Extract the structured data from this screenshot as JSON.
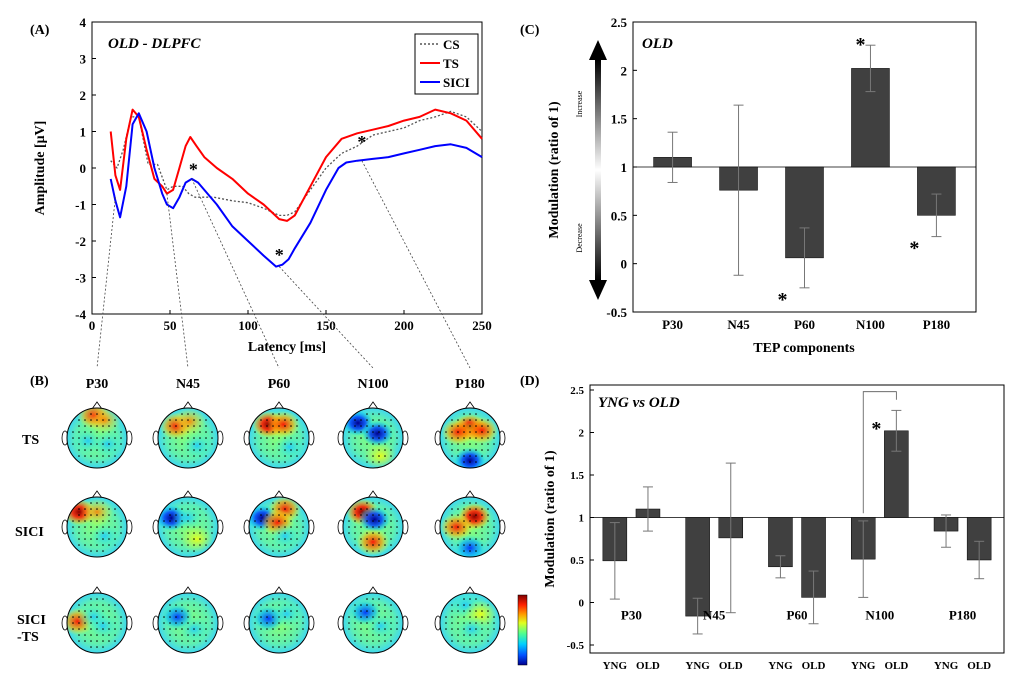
{
  "panel_labels": {
    "a": "(A)",
    "b": "(B)",
    "c": "(C)",
    "d": "(D)"
  },
  "colors": {
    "cs": "#555555",
    "ts": "#ff0000",
    "sici": "#0000ff",
    "bar": "#404040"
  },
  "chart_data": [
    {
      "id": "A",
      "type": "line",
      "title": "OLD - DLPFC",
      "xlabel": "Latency [ms]",
      "ylabel": "Amplitude [μV]",
      "xlim": [
        0,
        250
      ],
      "ylim": [
        -4,
        4
      ],
      "xticks": [
        0,
        50,
        100,
        150,
        200,
        250
      ],
      "yticks": [
        -4,
        -3,
        -2,
        -1,
        0,
        1,
        2,
        3,
        4
      ],
      "series": [
        {
          "name": "CS",
          "style": "dotted",
          "color": "#555555",
          "x": [
            12,
            16,
            20,
            25,
            30,
            36,
            42,
            48,
            52,
            58,
            62,
            66,
            70,
            78,
            90,
            100,
            110,
            120,
            125,
            130,
            140,
            150,
            160,
            170,
            180,
            190,
            200,
            210,
            220,
            230,
            240,
            250
          ],
          "y": [
            0.2,
            0.0,
            0.5,
            1.4,
            1.4,
            0.1,
            0.1,
            -0.6,
            -0.5,
            -0.5,
            -0.7,
            -0.8,
            -0.8,
            -0.8,
            -0.9,
            -0.95,
            -1.1,
            -1.3,
            -1.3,
            -1.2,
            -0.6,
            0.0,
            0.4,
            0.6,
            0.9,
            1.0,
            1.1,
            1.3,
            1.4,
            1.55,
            1.4,
            1.0
          ]
        },
        {
          "name": "TS",
          "style": "solid",
          "color": "#ff0000",
          "x": [
            12,
            15,
            18,
            22,
            26,
            30,
            35,
            40,
            45,
            48,
            52,
            56,
            60,
            63,
            67,
            72,
            80,
            90,
            100,
            110,
            120,
            125,
            130,
            140,
            150,
            160,
            170,
            180,
            190,
            200,
            210,
            220,
            230,
            240,
            250
          ],
          "y": [
            1.0,
            -0.2,
            -0.6,
            0.8,
            1.6,
            1.4,
            0.5,
            -0.3,
            -0.5,
            -0.7,
            -0.6,
            0.0,
            0.6,
            0.85,
            0.6,
            0.3,
            0.0,
            -0.3,
            -0.7,
            -1.0,
            -1.4,
            -1.45,
            -1.3,
            -0.5,
            0.3,
            0.8,
            0.95,
            1.05,
            1.15,
            1.3,
            1.4,
            1.6,
            1.5,
            1.3,
            0.8
          ]
        },
        {
          "name": "SICI",
          "style": "solid",
          "color": "#0000ff",
          "x": [
            12,
            15,
            18,
            22,
            26,
            30,
            35,
            40,
            45,
            48,
            52,
            56,
            60,
            64,
            68,
            72,
            80,
            90,
            100,
            110,
            118,
            122,
            126,
            130,
            140,
            150,
            158,
            163,
            170,
            180,
            190,
            200,
            210,
            220,
            230,
            240,
            250
          ],
          "y": [
            -0.3,
            -0.9,
            -1.35,
            -0.5,
            1.2,
            1.5,
            1.0,
            0.0,
            -0.7,
            -1.0,
            -1.1,
            -0.8,
            -0.4,
            -0.3,
            -0.4,
            -0.6,
            -1.0,
            -1.6,
            -2.0,
            -2.4,
            -2.7,
            -2.65,
            -2.5,
            -2.2,
            -1.5,
            -0.6,
            0.0,
            0.15,
            0.2,
            0.25,
            0.3,
            0.4,
            0.5,
            0.6,
            0.65,
            0.55,
            0.3
          ]
        }
      ],
      "significance": [
        {
          "x": 65,
          "y": -0.2,
          "label": "*"
        },
        {
          "x": 120,
          "y": -2.55,
          "label": "*"
        },
        {
          "x": 173,
          "y": 0.55,
          "label": "*"
        }
      ],
      "legend": "top-right"
    },
    {
      "id": "B",
      "type": "heatmap",
      "columns": [
        "P30",
        "N45",
        "P60",
        "N100",
        "P180"
      ],
      "rows": [
        "TS",
        "SICI",
        "SICI\n-TS"
      ],
      "rows_lines": [
        [
          "TS"
        ],
        [
          "SICI"
        ],
        [
          "SICI",
          "-TS"
        ]
      ],
      "colorbar": {
        "colors": [
          "#00008f",
          "#0050ff",
          "#00d0ff",
          "#50ff90",
          "#e0ff20",
          "#ffa000",
          "#ff2000",
          "#800000"
        ]
      },
      "maps": [
        [
          [
            {
              "x": -0.1,
              "y": -0.75,
              "c": "red"
            },
            {
              "x": 0.25,
              "y": -0.6,
              "c": "orange"
            },
            {
              "x": -0.3,
              "y": 0.1,
              "c": "cyan"
            },
            {
              "x": 0.35,
              "y": 0.2,
              "c": "cyan"
            }
          ],
          [
            {
              "x": -0.4,
              "y": -0.4,
              "c": "red"
            },
            {
              "x": 0.05,
              "y": -0.55,
              "c": "orange"
            },
            {
              "x": 0.3,
              "y": 0.25,
              "c": "cyan"
            }
          ],
          [
            {
              "x": -0.35,
              "y": -0.45,
              "c": "darkred"
            },
            {
              "x": 0.15,
              "y": -0.45,
              "c": "red"
            },
            {
              "x": 0.35,
              "y": 0.3,
              "c": "cyan"
            }
          ],
          [
            {
              "x": -0.5,
              "y": -0.5,
              "c": "darkblue"
            },
            {
              "x": 0.15,
              "y": -0.15,
              "c": "darkblue"
            },
            {
              "x": 0.25,
              "y": 0.6,
              "c": "yellow"
            }
          ],
          [
            {
              "x": 0.0,
              "y": -0.35,
              "c": "darkred"
            },
            {
              "x": -0.4,
              "y": -0.2,
              "c": "red"
            },
            {
              "x": 0.4,
              "y": -0.25,
              "c": "red"
            },
            {
              "x": 0.0,
              "y": 0.75,
              "c": "darkblue"
            }
          ]
        ],
        [
          [
            {
              "x": -0.6,
              "y": -0.5,
              "c": "darkred"
            },
            {
              "x": 0.0,
              "y": -0.5,
              "c": "orange"
            },
            {
              "x": 0.25,
              "y": 0.3,
              "c": "cyan"
            }
          ],
          [
            {
              "x": -0.55,
              "y": -0.3,
              "c": "darkblue"
            },
            {
              "x": 0.0,
              "y": -0.3,
              "c": "cyan"
            },
            {
              "x": 0.3,
              "y": 0.4,
              "c": "yellow"
            }
          ],
          [
            {
              "x": -0.55,
              "y": -0.3,
              "c": "darkblue"
            },
            {
              "x": 0.2,
              "y": -0.6,
              "c": "red"
            },
            {
              "x": -0.05,
              "y": -0.15,
              "c": "red"
            },
            {
              "x": 0.2,
              "y": 0.3,
              "c": "cyan"
            }
          ],
          [
            {
              "x": -0.35,
              "y": -0.5,
              "c": "darkred"
            },
            {
              "x": 0.05,
              "y": -0.25,
              "c": "darkblue"
            },
            {
              "x": 0.0,
              "y": 0.5,
              "c": "red"
            }
          ],
          [
            {
              "x": 0.15,
              "y": -0.35,
              "c": "darkred"
            },
            {
              "x": -0.45,
              "y": 0.0,
              "c": "red"
            },
            {
              "x": 0.0,
              "y": 0.7,
              "c": "blue"
            }
          ]
        ],
        [
          [
            {
              "x": -0.65,
              "y": -0.05,
              "c": "red"
            },
            {
              "x": -0.1,
              "y": -0.2,
              "c": "cyan"
            },
            {
              "x": 0.2,
              "y": 0.1,
              "c": "cyan"
            }
          ],
          [
            {
              "x": -0.35,
              "y": -0.2,
              "c": "blue"
            },
            {
              "x": 0.2,
              "y": 0.2,
              "c": "cyan"
            }
          ],
          [
            {
              "x": -0.35,
              "y": -0.15,
              "c": "blue"
            },
            {
              "x": 0.25,
              "y": -0.3,
              "c": "cyan"
            }
          ],
          [
            {
              "x": -0.25,
              "y": -0.35,
              "c": "blue"
            },
            {
              "x": 0.25,
              "y": 0.1,
              "c": "cyan"
            }
          ],
          [
            {
              "x": -0.15,
              "y": -0.6,
              "c": "cyan"
            },
            {
              "x": 0.35,
              "y": -0.3,
              "c": "yellow"
            },
            {
              "x": 0.05,
              "y": 0.2,
              "c": "cyan"
            }
          ]
        ]
      ]
    },
    {
      "id": "C",
      "type": "bar",
      "title": "OLD",
      "xlabel": "TEP components",
      "ylabel": "Modulation (ratio of 1)",
      "categories": [
        "P30",
        "N45",
        "P60",
        "N100",
        "P180"
      ],
      "values": [
        1.1,
        0.76,
        0.06,
        2.02,
        0.5
      ],
      "errors": [
        0.26,
        0.88,
        0.31,
        0.24,
        0.22
      ],
      "significant": [
        false,
        false,
        true,
        true,
        true
      ],
      "ylim": [
        -0.5,
        2.5
      ],
      "yticks": [
        -0.5,
        0,
        0.5,
        1,
        1.5,
        2,
        2.5
      ],
      "baseline": 1,
      "arrow_labels": {
        "up": "Increase",
        "down": "Decrease"
      }
    },
    {
      "id": "D",
      "type": "bar",
      "title": "YNG vs OLD",
      "ylabel": "Modulation (ratio of 1)",
      "categories": [
        "P30",
        "N45",
        "P60",
        "N100",
        "P180"
      ],
      "group_labels": [
        "YNG",
        "OLD"
      ],
      "series": [
        {
          "name": "YNG",
          "values": [
            0.49,
            -0.16,
            0.42,
            0.51,
            0.84
          ],
          "errors": [
            0.45,
            0.21,
            0.13,
            0.45,
            0.19
          ]
        },
        {
          "name": "OLD",
          "values": [
            1.1,
            0.76,
            0.06,
            2.02,
            0.5
          ],
          "errors": [
            0.26,
            0.88,
            0.31,
            0.24,
            0.22
          ]
        }
      ],
      "ylim": [
        -0.5,
        2.5
      ],
      "yticks": [
        -0.5,
        0,
        0.5,
        1,
        1.5,
        2,
        2.5
      ],
      "baseline": 1,
      "significance": [
        {
          "category": "N100",
          "label": "*"
        }
      ]
    }
  ]
}
